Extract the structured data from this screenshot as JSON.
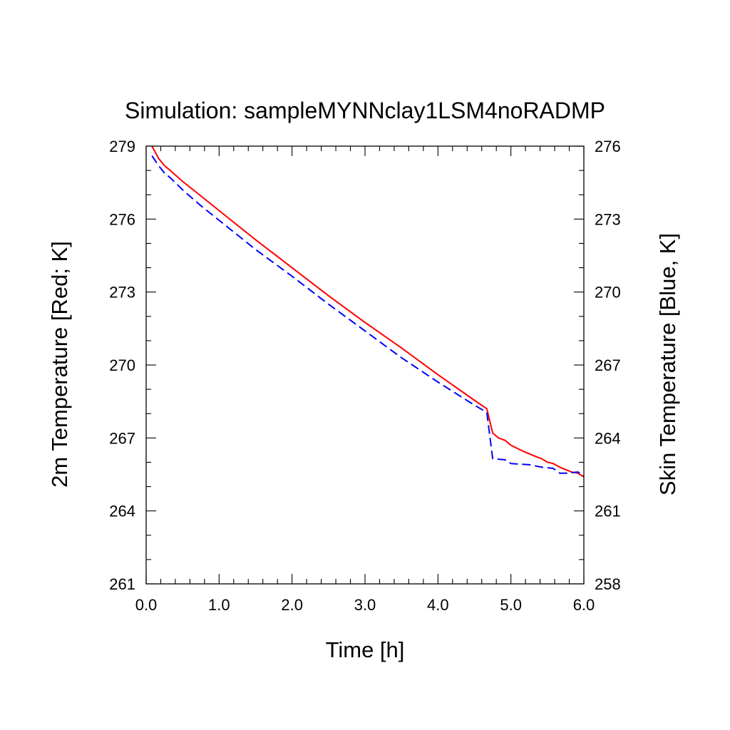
{
  "chart_data": {
    "type": "line",
    "title": "Simulation: sampleMYNNclay1LSM4noRADMP",
    "xlabel": "Time [h]",
    "ylabel_left": "2m Temperature [Red; K]",
    "ylabel_right": "Skin Temperature [Blue, K]",
    "xlim": [
      0,
      6
    ],
    "ylim_left": [
      261,
      279
    ],
    "ylim_right": [
      258,
      276
    ],
    "x_ticks": [
      0,
      1,
      2,
      3,
      4,
      5,
      6
    ],
    "x_tick_labels": [
      "0.0",
      "1.0",
      "2.0",
      "3.0",
      "4.0",
      "5.0",
      "6.0"
    ],
    "y_left_ticks": [
      261,
      264,
      267,
      270,
      273,
      276,
      279
    ],
    "y_left_tick_labels": [
      "261",
      "264",
      "267",
      "270",
      "273",
      "276",
      "279"
    ],
    "y_right_ticks": [
      258,
      261,
      264,
      267,
      270,
      273,
      276
    ],
    "y_right_tick_labels": [
      "258",
      "261",
      "264",
      "267",
      "270",
      "273",
      "276"
    ],
    "grid": false,
    "series": [
      {
        "axis": "left",
        "color": "#ff0000",
        "style": "solid",
        "x": [
          0.08,
          0.17,
          0.25,
          0.33,
          0.5,
          0.75,
          1.0,
          1.5,
          2.0,
          2.5,
          3.0,
          3.5,
          4.0,
          4.5,
          4.67,
          4.75,
          4.83,
          4.92,
          5.0,
          5.17,
          5.33,
          5.42,
          5.5,
          5.58,
          5.67,
          5.83,
          5.92,
          6.0
        ],
        "y": [
          279.0,
          278.5,
          278.2,
          278.0,
          277.55,
          276.95,
          276.35,
          275.15,
          274.0,
          272.85,
          271.75,
          270.7,
          269.6,
          268.55,
          268.2,
          267.2,
          267.0,
          266.9,
          266.7,
          266.45,
          266.25,
          266.15,
          266.0,
          265.95,
          265.8,
          265.6,
          265.55,
          265.4
        ]
      },
      {
        "axis": "right",
        "color": "#0000ff",
        "style": "dashed",
        "x": [
          0.08,
          0.17,
          0.25,
          0.33,
          0.5,
          0.75,
          1.0,
          1.5,
          2.0,
          2.5,
          3.0,
          3.5,
          4.0,
          4.5,
          4.67,
          4.75,
          4.92,
          5.0,
          5.25,
          5.42,
          5.58,
          5.67,
          5.75,
          5.92,
          6.0
        ],
        "y": [
          275.6,
          275.2,
          274.9,
          274.7,
          274.2,
          273.55,
          272.95,
          271.75,
          270.65,
          269.5,
          268.4,
          267.3,
          266.3,
          265.35,
          265.05,
          263.15,
          263.1,
          262.95,
          262.9,
          262.8,
          262.75,
          262.55,
          262.55,
          262.6,
          262.45
        ]
      }
    ]
  }
}
